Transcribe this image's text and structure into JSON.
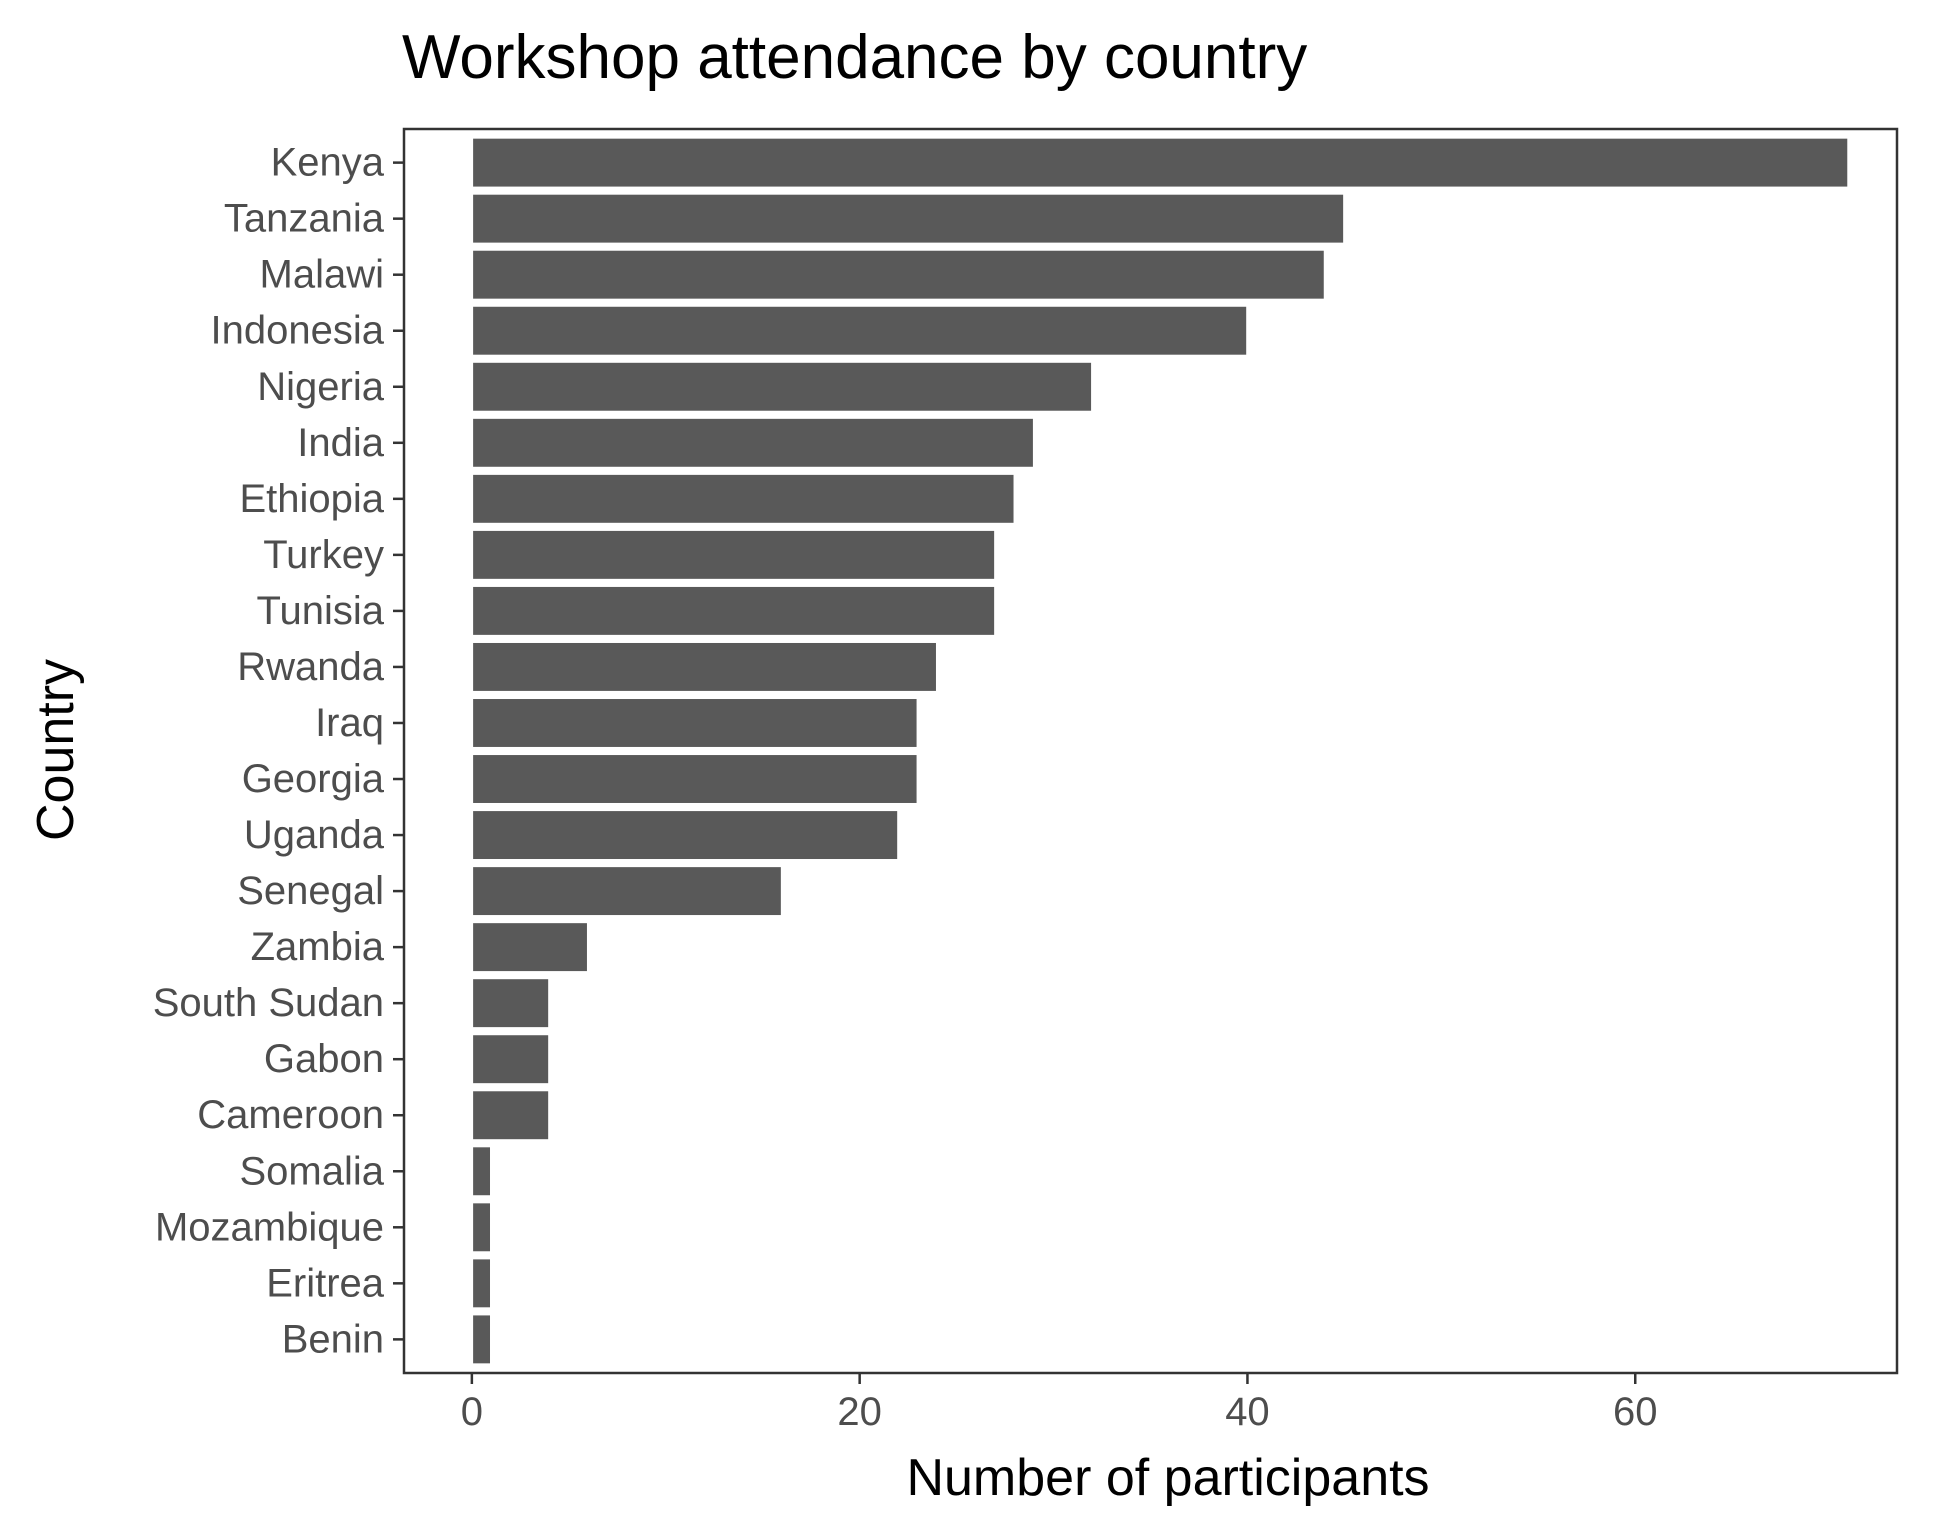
{
  "chart_data": {
    "type": "bar",
    "orientation": "horizontal",
    "title": "Workshop attendance by country",
    "xlabel": "Number of participants",
    "ylabel": "Country",
    "categories": [
      "Kenya",
      "Tanzania",
      "Malawi",
      "Indonesia",
      "Nigeria",
      "India",
      "Ethiopia",
      "Turkey",
      "Tunisia",
      "Rwanda",
      "Iraq",
      "Georgia",
      "Uganda",
      "Senegal",
      "Zambia",
      "South Sudan",
      "Gabon",
      "Cameroon",
      "Somalia",
      "Mozambique",
      "Eritrea",
      "Benin"
    ],
    "values": [
      71,
      45,
      44,
      40,
      32,
      29,
      28,
      27,
      27,
      24,
      23,
      23,
      22,
      16,
      6,
      4,
      4,
      4,
      1,
      1,
      1,
      1
    ],
    "xlim": [
      -3.5,
      73.5
    ],
    "xticks": [
      0,
      20,
      40,
      60
    ],
    "xtick_labels": [
      "0",
      "20",
      "40",
      "60"
    ],
    "grid": false,
    "bar_color": "#595959",
    "panel_border_color": "#333333",
    "tick_color": "#333333",
    "tick_label_color": "#4d4d4d"
  }
}
